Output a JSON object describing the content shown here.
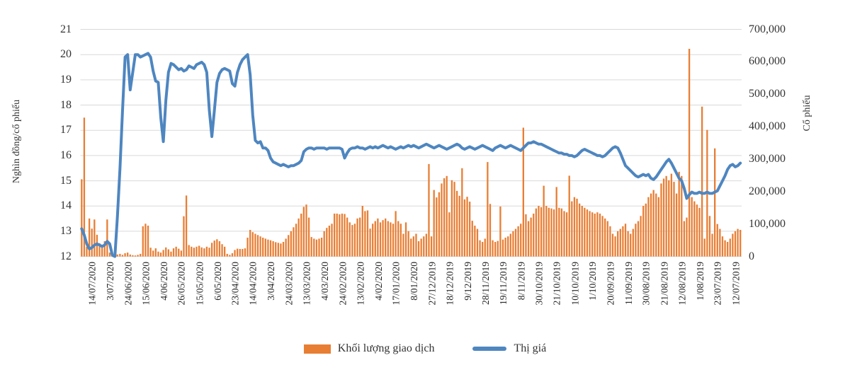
{
  "colors": {
    "bar": "#E87E34",
    "line": "#4E86C0",
    "grid": "#D9D9D9",
    "text": "#333333"
  },
  "legend": {
    "volume_label": "Khối lượng giao dịch",
    "price_label": "Thị giá"
  },
  "chart_data": {
    "type": "combo-bar-line",
    "left_axis": {
      "title": "Nghìn đồng/cổ phiếu",
      "min": 12,
      "max": 21,
      "ticks": [
        "12",
        "13",
        "14",
        "15",
        "16",
        "17",
        "18",
        "19",
        "20",
        "21"
      ]
    },
    "right_axis": {
      "title": "Cổ phiếu",
      "min": 0,
      "max": 700000,
      "ticks": [
        "0",
        "100,000",
        "200,000",
        "300,000",
        "400,000",
        "500,000",
        "600,000",
        "700,000"
      ]
    },
    "grid": true,
    "legend_position": "bottom",
    "label_every": 7,
    "categories": [
      "14/07/2020",
      "3/07/2020",
      "24/06/2020",
      "15/06/2020",
      "4/06/2020",
      "26/05/2020",
      "15/05/2020",
      "6/05/2020",
      "23/04/2020",
      "14/04/2020",
      "3/04/2020",
      "24/03/2020",
      "13/03/2020",
      "4/03/2020",
      "24/02/2020",
      "13/02/2020",
      "4/02/2020",
      "17/01/2020",
      "8/01/2020",
      "27/12/2019",
      "18/12/2019",
      "9/12/2019",
      "28/11/2019",
      "19/11/2019",
      "8/11/2019",
      "30/10/2019",
      "21/10/2019",
      "10/10/2019",
      "1/10/2019",
      "20/09/2019",
      "11/09/2019",
      "30/08/2019",
      "21/08/2019",
      "12/08/2019",
      "1/08/2019",
      "23/07/2019",
      "12/07/2019"
    ],
    "series": [
      {
        "name": "Khối lượng giao dịch",
        "type": "bar",
        "axis": "right",
        "values": [
          238000,
          428000,
          30000,
          117000,
          86000,
          114000,
          67000,
          41000,
          31000,
          47000,
          114000,
          12000,
          5000,
          4000,
          6000,
          8000,
          5000,
          10000,
          12000,
          6000,
          4000,
          3000,
          5000,
          8000,
          93000,
          101000,
          95000,
          27000,
          18000,
          25000,
          15000,
          12000,
          20000,
          28000,
          22000,
          15000,
          25000,
          30000,
          24000,
          18000,
          124000,
          188000,
          35000,
          30000,
          27000,
          30000,
          33000,
          28000,
          25000,
          30000,
          27000,
          42000,
          49000,
          53000,
          47000,
          38000,
          30000,
          8000,
          5000,
          10000,
          20000,
          24000,
          23000,
          23000,
          25000,
          58000,
          82000,
          75000,
          70000,
          66000,
          62000,
          58000,
          55000,
          52000,
          50000,
          47000,
          44000,
          42000,
          40000,
          45000,
          55000,
          66000,
          78000,
          90000,
          101000,
          117000,
          132000,
          153000,
          160000,
          120000,
          60000,
          55000,
          52000,
          55000,
          58000,
          78000,
          88000,
          95000,
          101000,
          132000,
          132000,
          130000,
          132000,
          131000,
          120000,
          105000,
          97000,
          101000,
          117000,
          120000,
          156000,
          140000,
          142000,
          86000,
          101000,
          109000,
          117000,
          105000,
          112000,
          117000,
          109000,
          105000,
          101000,
          140000,
          109000,
          101000,
          70000,
          105000,
          78000,
          55000,
          62000,
          70000,
          47000,
          55000,
          62000,
          70000,
          285000,
          62000,
          205000,
          182000,
          198000,
          225000,
          241000,
          248000,
          136000,
          235000,
          230000,
          202000,
          187000,
          272000,
          176000,
          184000,
          169000,
          110000,
          95000,
          85000,
          50000,
          45000,
          55000,
          291000,
          162000,
          50000,
          45000,
          48000,
          154000,
          52000,
          58000,
          62000,
          70000,
          78000,
          85000,
          93000,
          101000,
          397000,
          130000,
          109000,
          120000,
          132000,
          148000,
          156000,
          152000,
          218000,
          156000,
          150000,
          148000,
          145000,
          214000,
          150000,
          148000,
          140000,
          136000,
          249000,
          170000,
          183000,
          178000,
          163000,
          156000,
          150000,
          145000,
          140000,
          136000,
          132000,
          136000,
          132000,
          125000,
          117000,
          109000,
          93000,
          70000,
          62000,
          78000,
          85000,
          93000,
          101000,
          78000,
          70000,
          85000,
          101000,
          109000,
          125000,
          156000,
          163000,
          183000,
          194000,
          205000,
          194000,
          183000,
          225000,
          240000,
          248000,
          235000,
          255000,
          230000,
          194000,
          261000,
          248000,
          109000,
          120000,
          640000,
          183000,
          170000,
          160000,
          150000,
          462000,
          55000,
          390000,
          125000,
          70000,
          333000,
          100000,
          85000,
          62000,
          50000,
          45000,
          55000,
          70000,
          78000,
          85000,
          82000
        ]
      },
      {
        "name": "Thị giá",
        "type": "line",
        "axis": "left",
        "values": [
          13.1,
          12.85,
          12.5,
          12.3,
          12.35,
          12.45,
          12.5,
          12.45,
          12.4,
          12.45,
          12.6,
          12.5,
          12.05,
          12.0,
          13.6,
          15.5,
          17.8,
          19.9,
          20.0,
          18.6,
          19.3,
          20.0,
          20.0,
          19.9,
          19.95,
          20.0,
          20.05,
          19.9,
          19.35,
          18.95,
          18.9,
          17.5,
          16.55,
          18.2,
          19.3,
          19.65,
          19.6,
          19.5,
          19.4,
          19.45,
          19.35,
          19.4,
          19.55,
          19.5,
          19.45,
          19.6,
          19.65,
          19.7,
          19.6,
          19.3,
          17.8,
          16.75,
          17.8,
          18.9,
          19.25,
          19.4,
          19.45,
          19.4,
          19.35,
          18.85,
          18.75,
          19.3,
          19.6,
          19.8,
          19.9,
          20.0,
          19.2,
          17.6,
          16.6,
          16.5,
          16.55,
          16.3,
          16.3,
          16.2,
          15.9,
          15.75,
          15.7,
          15.65,
          15.6,
          15.65,
          15.6,
          15.55,
          15.6,
          15.6,
          15.65,
          15.7,
          15.8,
          16.15,
          16.25,
          16.3,
          16.3,
          16.25,
          16.3,
          16.3,
          16.3,
          16.3,
          16.25,
          16.3,
          16.3,
          16.3,
          16.3,
          16.3,
          16.25,
          15.9,
          16.1,
          16.25,
          16.3,
          16.3,
          16.35,
          16.3,
          16.3,
          16.25,
          16.3,
          16.35,
          16.3,
          16.35,
          16.3,
          16.35,
          16.4,
          16.35,
          16.3,
          16.35,
          16.3,
          16.25,
          16.3,
          16.35,
          16.3,
          16.35,
          16.4,
          16.35,
          16.4,
          16.35,
          16.3,
          16.35,
          16.4,
          16.45,
          16.4,
          16.35,
          16.3,
          16.35,
          16.4,
          16.35,
          16.3,
          16.25,
          16.3,
          16.35,
          16.4,
          16.45,
          16.4,
          16.3,
          16.25,
          16.3,
          16.35,
          16.3,
          16.25,
          16.3,
          16.35,
          16.4,
          16.35,
          16.3,
          16.25,
          16.2,
          16.3,
          16.35,
          16.4,
          16.35,
          16.3,
          16.35,
          16.4,
          16.35,
          16.3,
          16.25,
          16.2,
          16.3,
          16.4,
          16.5,
          16.5,
          16.55,
          16.5,
          16.45,
          16.45,
          16.4,
          16.35,
          16.3,
          16.25,
          16.2,
          16.15,
          16.1,
          16.1,
          16.05,
          16.05,
          16.0,
          16.0,
          15.95,
          16.0,
          16.1,
          16.2,
          16.25,
          16.2,
          16.15,
          16.1,
          16.05,
          16.0,
          16.0,
          15.95,
          16.0,
          16.1,
          16.2,
          16.3,
          16.35,
          16.3,
          16.1,
          15.85,
          15.6,
          15.5,
          15.4,
          15.3,
          15.2,
          15.15,
          15.2,
          15.25,
          15.2,
          15.25,
          15.1,
          15.05,
          15.15,
          15.3,
          15.45,
          15.6,
          15.75,
          15.85,
          15.7,
          15.5,
          15.3,
          15.1,
          15.0,
          14.7,
          14.3,
          14.45,
          14.55,
          14.5,
          14.5,
          14.55,
          14.5,
          14.5,
          14.55,
          14.5,
          14.5,
          14.55,
          14.6,
          14.8,
          15.0,
          15.2,
          15.45,
          15.6,
          15.65,
          15.55,
          15.6,
          15.7
        ]
      }
    ]
  }
}
